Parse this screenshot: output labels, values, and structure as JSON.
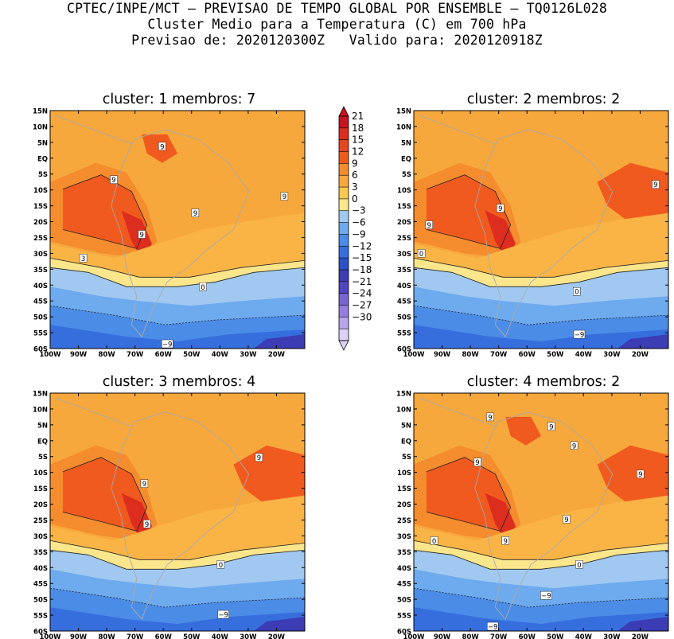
{
  "header": {
    "line1": "CPTEC/INPE/MCT – PREVISAO DE TEMPO GLOBAL POR ENSEMBLE – TQ0126L028",
    "line2": "Cluster Medio para a Temperatura (C) em 700 hPa",
    "line3": "Previsao de: 2020120300Z   Valido para: 2020120918Z"
  },
  "lat_ticks": [
    "15N",
    "10N",
    "5N",
    "EQ",
    "5S",
    "10S",
    "15S",
    "20S",
    "25S",
    "30S",
    "35S",
    "40S",
    "45S",
    "50S",
    "55S",
    "60S"
  ],
  "lon_ticks": [
    "100W",
    "90W",
    "80W",
    "70W",
    "60W",
    "50W",
    "40W",
    "30W",
    "20W"
  ],
  "colorbar": {
    "levels": [
      "21",
      "18",
      "15",
      "12",
      "9",
      "6",
      "3",
      "0",
      "−3",
      "−6",
      "−9",
      "−12",
      "−15",
      "−18",
      "−21",
      "−24",
      "−27",
      "−30"
    ],
    "colors": [
      "#c8141e",
      "#dc2d1e",
      "#e6461e",
      "#f05a1e",
      "#f58c2d",
      "#f7a83c",
      "#fac850",
      "#fbe68c",
      "#a0c8f0",
      "#6eaaee",
      "#4b8ce6",
      "#376ede",
      "#2d50c8",
      "#3c3cb4",
      "#5046c3",
      "#7864d2",
      "#967ee1",
      "#b9a5ee",
      "#dcd2f8"
    ]
  },
  "panels": [
    {
      "title": "cluster: 1   membros: 7",
      "labels": [
        {
          "t": "9"
        },
        {
          "t": "9"
        },
        {
          "t": "9"
        },
        {
          "t": "9"
        },
        {
          "t": "9"
        },
        {
          "t": "3"
        },
        {
          "t": "0"
        },
        {
          "t": "−9"
        }
      ]
    },
    {
      "title": "cluster: 2   membros: 2",
      "labels": [
        {
          "t": "9"
        },
        {
          "t": "9"
        },
        {
          "t": "9"
        },
        {
          "t": "0"
        },
        {
          "t": "0"
        },
        {
          "t": "−9"
        }
      ]
    },
    {
      "title": "cluster: 3   membros: 4",
      "labels": [
        {
          "t": "9"
        },
        {
          "t": "9"
        },
        {
          "t": "9"
        },
        {
          "t": "0"
        },
        {
          "t": "−9"
        }
      ]
    },
    {
      "title": "cluster: 4   membros: 2",
      "labels": [
        {
          "t": "9"
        },
        {
          "t": "9"
        },
        {
          "t": "9"
        },
        {
          "t": "9"
        },
        {
          "t": "9"
        },
        {
          "t": "9"
        },
        {
          "t": "9"
        },
        {
          "t": "0"
        },
        {
          "t": "0"
        },
        {
          "t": "−9"
        },
        {
          "t": "−9"
        }
      ]
    }
  ]
}
